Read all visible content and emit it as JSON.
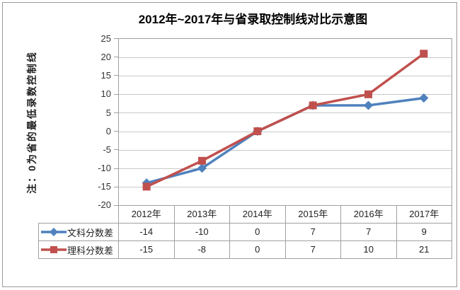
{
  "title": "2012年~2017年与省录取控制线对比示意图",
  "y_axis_note": "注：0为省的最低录数控制线",
  "chart_data": {
    "type": "line",
    "title": "2012年~2017年与省录取控制线对比示意图",
    "categories": [
      "2012年",
      "2013年",
      "2014年",
      "2015年",
      "2016年",
      "2017年"
    ],
    "series": [
      {
        "name": "文科分数差",
        "values": [
          -14,
          -10,
          0,
          7,
          7,
          9
        ],
        "color": "#4F81BD",
        "marker": "diamond"
      },
      {
        "name": "理科分数差",
        "values": [
          -15,
          -8,
          0,
          7,
          10,
          21
        ],
        "color": "#C0504D",
        "marker": "square"
      }
    ],
    "ylim": [
      -20,
      25
    ],
    "ytick_step": 5,
    "yticks": [
      25,
      20,
      15,
      10,
      5,
      0,
      -5,
      -10,
      -15,
      -20
    ],
    "grid": "horizontal",
    "legend_position": "data-table-left",
    "annotation": "注：0为省的最低录数控制线"
  },
  "table": {
    "headers": [
      "2012年",
      "2013年",
      "2014年",
      "2015年",
      "2016年",
      "2017年"
    ],
    "rows": [
      {
        "label": "文科分数差",
        "values": [
          "-14",
          "-10",
          "0",
          "7",
          "7",
          "9"
        ]
      },
      {
        "label": "理科分数差",
        "values": [
          "-15",
          "-8",
          "0",
          "7",
          "10",
          "21"
        ]
      }
    ]
  },
  "colors": {
    "series_wenke": "#4F81BD",
    "series_like": "#C0504D",
    "gridline": "#C9C9C9",
    "axis_border": "#A0A0A0",
    "frame_border": "#9A9A9A",
    "background": "#FFFFFF"
  }
}
